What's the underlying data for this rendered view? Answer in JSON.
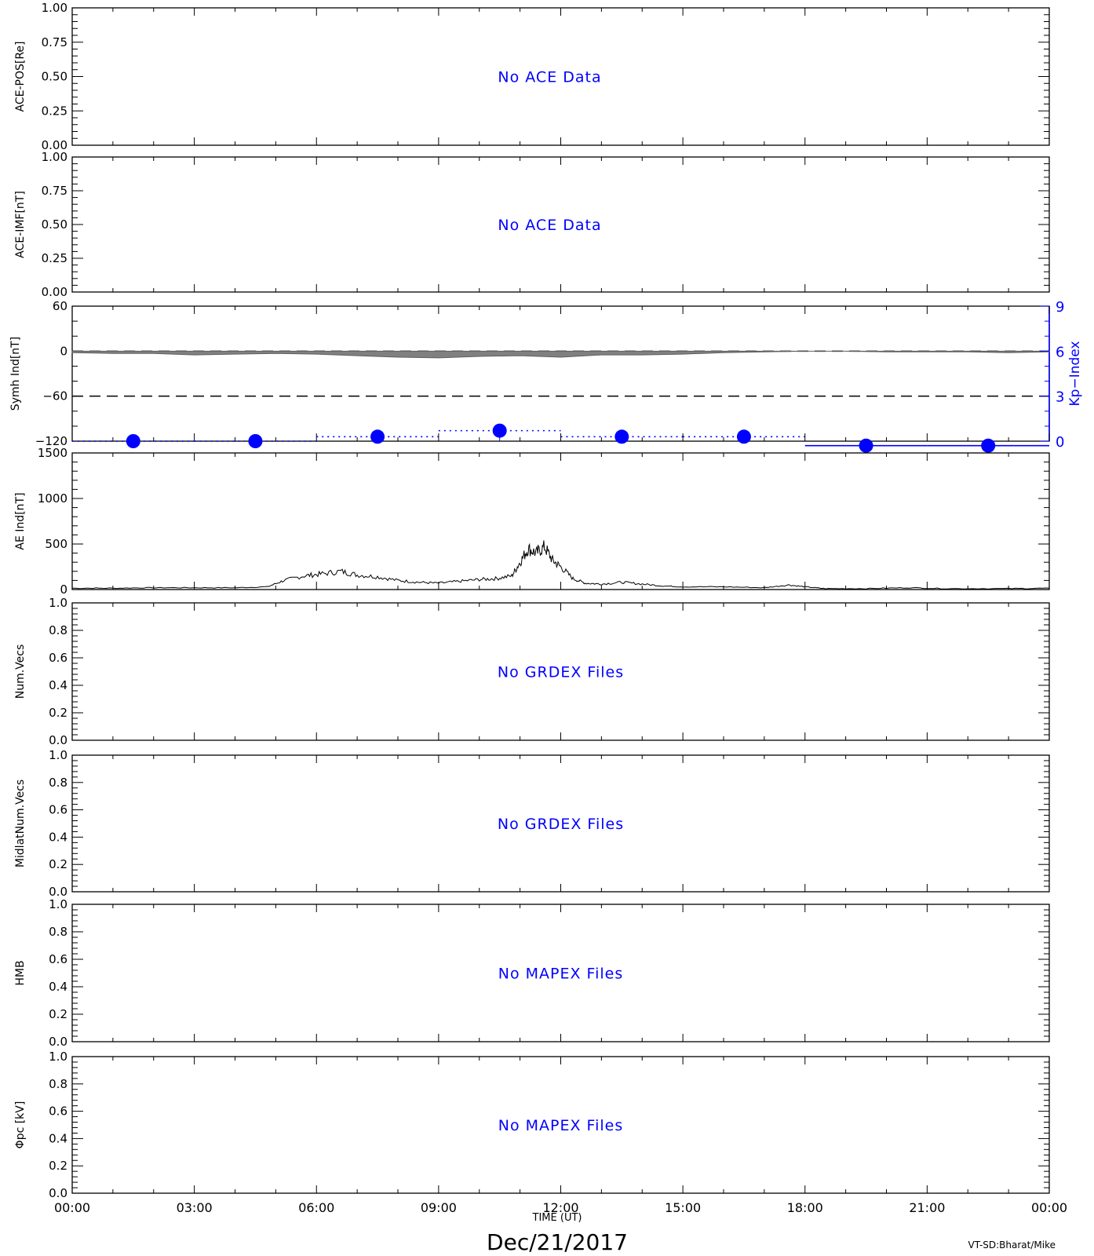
{
  "chart_data": {
    "type": "line",
    "title_date": "Dec/21/2017",
    "xlabel": "TIME (UT)",
    "credit": "VT-SD:Bharat/Mike",
    "x_tick_labels": [
      "00:00",
      "03:00",
      "06:00",
      "09:00",
      "12:00",
      "15:00",
      "18:00",
      "21:00",
      "00:00"
    ],
    "xlim_hours": [
      0,
      24
    ],
    "panels": [
      {
        "id": "ace-pos",
        "ylabel": "ACE-POS[Re]",
        "ylim": [
          0,
          1
        ],
        "yticks": [
          "0.00",
          "0.25",
          "0.50",
          "0.75",
          "1.00"
        ],
        "message": "No ACE Data"
      },
      {
        "id": "ace-imf",
        "ylabel": "ACE-IMF[nT]",
        "ylim": [
          0,
          1
        ],
        "yticks": [
          "0.00",
          "0.25",
          "0.50",
          "0.75",
          "1.00"
        ],
        "message": "No ACE Data"
      },
      {
        "id": "symh",
        "ylabel": "Symh Ind[nT]",
        "ylim": [
          -120,
          60
        ],
        "yticks": [
          "−120",
          "−60",
          "0",
          "60"
        ],
        "dashed_levels": [
          0,
          -60
        ],
        "right_axis": {
          "ylabel": "Kp−Index",
          "ylim": [
            0,
            9
          ],
          "yticks": [
            "0",
            "3",
            "6",
            "9"
          ],
          "color": "#0000ff"
        },
        "symh_x_hours": [
          0,
          1,
          2,
          3,
          4,
          5,
          6,
          7,
          8,
          9,
          10,
          11,
          12,
          13,
          14,
          15,
          16,
          17,
          18,
          19,
          20,
          21,
          22,
          23,
          24
        ],
        "symh_values": [
          -2,
          -3,
          -3,
          -5,
          -4,
          -3,
          -4,
          -6,
          -8,
          -9,
          -7,
          -6,
          -8,
          -5,
          -5,
          -4,
          -2,
          -1,
          0,
          0,
          -1,
          -1,
          -1,
          -2,
          -1
        ],
        "kp_x_hours": [
          1.5,
          4.5,
          7.5,
          10.5,
          13.5,
          16.5,
          19.5,
          22.5
        ],
        "kp_values": [
          0,
          0,
          0.3,
          0.7,
          0.3,
          0.3,
          -0.3,
          -0.3
        ]
      },
      {
        "id": "ae",
        "ylabel": "AE Ind[nT]",
        "ylim": [
          0,
          1500
        ],
        "yticks": [
          "0",
          "500",
          "1000",
          "1500"
        ],
        "ae_x_hours": [
          0,
          1,
          2,
          3,
          4,
          4.8,
          5.2,
          5.7,
          6.1,
          6.6,
          7.0,
          7.5,
          8.0,
          8.5,
          9.0,
          9.5,
          10.0,
          10.4,
          10.8,
          11.0,
          11.2,
          11.4,
          11.6,
          11.8,
          12.0,
          12.3,
          12.6,
          13.0,
          13.5,
          14.0,
          14.5,
          15.0,
          16.0,
          17.0,
          17.6,
          18.0,
          18.5,
          19.5,
          20.5,
          21.5,
          23.0,
          24.0
        ],
        "ae_values": [
          15,
          15,
          20,
          20,
          20,
          30,
          100,
          150,
          170,
          200,
          160,
          140,
          100,
          80,
          70,
          90,
          110,
          120,
          150,
          300,
          450,
          400,
          470,
          320,
          250,
          120,
          70,
          60,
          80,
          60,
          40,
          30,
          30,
          20,
          50,
          30,
          10,
          10,
          20,
          10,
          10,
          15
        ]
      },
      {
        "id": "num-vecs",
        "ylabel": "Num.Vecs",
        "ylim": [
          0,
          1
        ],
        "yticks": [
          "0.0",
          "0.2",
          "0.4",
          "0.6",
          "0.8",
          "1.0"
        ],
        "message": "No GRDEX Files"
      },
      {
        "id": "midlat-vecs",
        "ylabel": "MidlatNum.Vecs",
        "ylim": [
          0,
          1
        ],
        "yticks": [
          "0.0",
          "0.2",
          "0.4",
          "0.6",
          "0.8",
          "1.0"
        ],
        "message": "No GRDEX Files"
      },
      {
        "id": "hmb",
        "ylabel": "HMB",
        "ylim": [
          0,
          1
        ],
        "yticks": [
          "0.0",
          "0.2",
          "0.4",
          "0.6",
          "0.8",
          "1.0"
        ],
        "message": "No MAPEX Files"
      },
      {
        "id": "phi-pc",
        "ylabel": "Φpc [kV]",
        "ylim": [
          0,
          1
        ],
        "yticks": [
          "0.0",
          "0.2",
          "0.4",
          "0.6",
          "0.8",
          "1.0"
        ],
        "message": "No MAPEX Files"
      }
    ]
  }
}
